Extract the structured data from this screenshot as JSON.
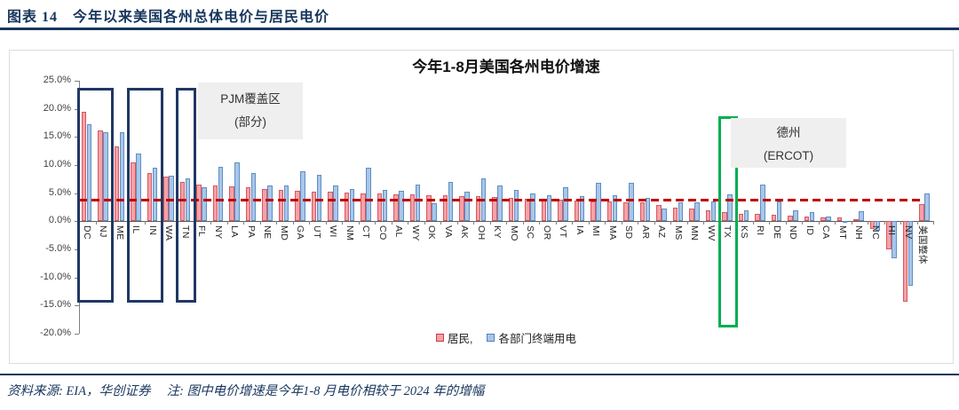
{
  "page": {
    "header": "图表 14　今年以来美国各州总体电价与居民电价",
    "source_note": "资料来源: EIA，华创证券　 注: 图中电价增速是今年1-8 月电价相较于 2024 年的增幅"
  },
  "chart_data": {
    "type": "bar",
    "title": "今年1-8月美国各州电价增速",
    "categories": [
      "DC",
      "NJ",
      "ME",
      "IL",
      "IN",
      "WA",
      "TN",
      "FL",
      "NY",
      "LA",
      "PA",
      "NE",
      "MD",
      "GA",
      "UT",
      "WI",
      "NM",
      "CT",
      "CO",
      "AL",
      "WY",
      "OK",
      "VA",
      "AK",
      "OH",
      "KY",
      "MO",
      "SC",
      "OR",
      "VT",
      "IA",
      "MI",
      "MA",
      "SD",
      "AR",
      "AZ",
      "MS",
      "MN",
      "WV",
      "TX",
      "KS",
      "RI",
      "DE",
      "ND",
      "ID",
      "CA",
      "MT",
      "NH",
      "NC",
      "HI",
      "NV",
      "美国整体"
    ],
    "series": [
      {
        "name": "居民,",
        "color_fill": "#F3A2A8",
        "color_border": "#D9565E",
        "values": [
          19.5,
          16.2,
          13.3,
          10.4,
          8.6,
          8.0,
          7.0,
          6.6,
          6.4,
          6.2,
          6.0,
          5.8,
          5.6,
          5.5,
          5.3,
          5.2,
          5.1,
          5.0,
          4.9,
          4.8,
          4.8,
          4.7,
          4.6,
          4.5,
          4.4,
          4.3,
          4.2,
          4.0,
          3.9,
          3.8,
          3.7,
          3.6,
          3.5,
          3.4,
          3.3,
          2.9,
          2.5,
          2.3,
          2.0,
          1.7,
          1.3,
          1.3,
          1.1,
          1.0,
          0.8,
          0.7,
          0.7,
          0.4,
          -1.3,
          -5.0,
          -14.3,
          3.0
        ]
      },
      {
        "name": "各部门终端用电",
        "color_fill": "#A9C6E8",
        "color_border": "#5E8FC4",
        "values": [
          17.3,
          15.9,
          15.8,
          12.0,
          9.5,
          8.1,
          7.7,
          6.0,
          9.7,
          10.5,
          8.6,
          6.3,
          6.4,
          8.9,
          8.2,
          6.4,
          5.8,
          9.5,
          5.6,
          5.4,
          6.5,
          3.2,
          7.0,
          5.2,
          7.7,
          6.4,
          5.6,
          5.0,
          4.6,
          6.0,
          4.4,
          6.9,
          4.7,
          6.9,
          4.2,
          2.2,
          3.3,
          3.3,
          3.6,
          4.8,
          1.9,
          6.6,
          3.5,
          1.9,
          1.7,
          0.9,
          -0.2,
          1.8,
          -1.7,
          -6.6,
          -11.5,
          4.9
        ]
      }
    ],
    "ylim": [
      -20,
      25
    ],
    "ytick_labels": [
      "25.0%",
      "20.0%",
      "15.0%",
      "10.0%",
      "5.0%",
      "0.0%",
      "-5.0%",
      "-10.0%",
      "-15.0%",
      "-20.0%"
    ],
    "grid": false,
    "legend_position": "bottom",
    "reference_line": {
      "value": 3.7,
      "color": "#C00000",
      "style": "dashed"
    },
    "annotations": {
      "pjm": {
        "line1": "PJM覆盖区",
        "line2": "(部分)"
      },
      "ercot": {
        "line1": "德州",
        "line2": "(ERCOT)"
      }
    },
    "highlight_boxes": [
      {
        "states": [
          "DC",
          "NJ"
        ],
        "start": 0,
        "end": 1,
        "color": "#1F3864"
      },
      {
        "states": [
          "IL",
          "IN"
        ],
        "start": 3,
        "end": 4,
        "color": "#1F3864"
      },
      {
        "states": [
          "TN"
        ],
        "start": 6,
        "end": 6,
        "color": "#1F3864"
      },
      {
        "states": [
          "TX"
        ],
        "start": 39,
        "end": 39,
        "color": "#00AF50"
      }
    ]
  }
}
